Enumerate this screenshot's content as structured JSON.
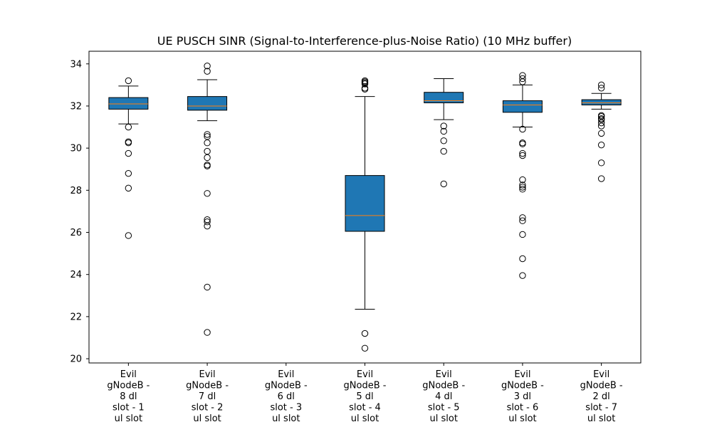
{
  "chart_data": {
    "type": "box",
    "title": "UE PUSCH SINR (Signal-to-Interference-plus-Noise Ratio) (10 MHz buffer)",
    "xlabel": "",
    "ylabel": "",
    "ylim": [
      19.8,
      34.6
    ],
    "yticks": [
      20,
      22,
      24,
      26,
      28,
      30,
      32,
      34
    ],
    "grid": false,
    "colors": {
      "box_fill": "#1f77b4",
      "median": "#ff7f0e",
      "edge": "#000000",
      "background": "#ffffff"
    },
    "categories": [
      [
        "Evil",
        "gNodeB -",
        "8 dl",
        "slot - 1",
        "ul slot"
      ],
      [
        "Evil",
        "gNodeB -",
        "7 dl",
        "slot - 2",
        "ul slot"
      ],
      [
        "Evil",
        "gNodeB -",
        "6 dl",
        "slot - 3",
        "ul slot"
      ],
      [
        "Evil",
        "gNodeB -",
        "5 dl",
        "slot - 4",
        "ul slot"
      ],
      [
        "Evil",
        "gNodeB -",
        "4 dl",
        "slot - 5",
        "ul slot"
      ],
      [
        "Evil",
        "gNodeB -",
        "3 dl",
        "slot - 6",
        "ul slot"
      ],
      [
        "Evil",
        "gNodeB -",
        "2 dl",
        "slot - 7",
        "ul slot"
      ]
    ],
    "boxes": [
      {
        "q1": 31.85,
        "median": 32.1,
        "q3": 32.4,
        "whisker_low": 31.15,
        "whisker_high": 32.95,
        "outliers": [
          33.2,
          31.0,
          30.3,
          30.25,
          29.75,
          28.8,
          28.1,
          25.85
        ]
      },
      {
        "q1": 31.8,
        "median": 32.0,
        "q3": 32.45,
        "whisker_low": 31.3,
        "whisker_high": 33.25,
        "outliers": [
          33.9,
          33.65,
          30.65,
          30.55,
          30.25,
          29.85,
          29.55,
          29.2,
          29.15,
          27.85,
          26.6,
          26.5,
          26.3,
          23.4,
          21.25
        ]
      },
      null,
      {
        "q1": 26.05,
        "median": 26.8,
        "q3": 28.7,
        "whisker_low": 22.35,
        "whisker_high": 32.45,
        "outliers": [
          33.2,
          33.15,
          33.1,
          33.05,
          32.85,
          32.8,
          21.2,
          20.5
        ]
      },
      {
        "q1": 32.15,
        "median": 32.25,
        "q3": 32.65,
        "whisker_low": 31.35,
        "whisker_high": 33.3,
        "outliers": [
          31.05,
          30.8,
          30.35,
          29.85,
          28.3
        ]
      },
      {
        "q1": 31.7,
        "median": 32.05,
        "q3": 32.25,
        "whisker_low": 31.0,
        "whisker_high": 33.0,
        "outliers": [
          33.45,
          33.3,
          33.15,
          30.9,
          30.25,
          30.2,
          29.75,
          29.65,
          28.5,
          28.25,
          28.15,
          28.05,
          26.7,
          26.55,
          25.9,
          24.75,
          23.95
        ]
      },
      {
        "q1": 32.05,
        "median": 32.15,
        "q3": 32.3,
        "whisker_low": 31.85,
        "whisker_high": 32.6,
        "outliers": [
          33.0,
          32.85,
          31.55,
          31.5,
          31.4,
          31.35,
          31.2,
          31.05,
          30.7,
          30.15,
          29.3,
          28.55
        ]
      }
    ]
  }
}
